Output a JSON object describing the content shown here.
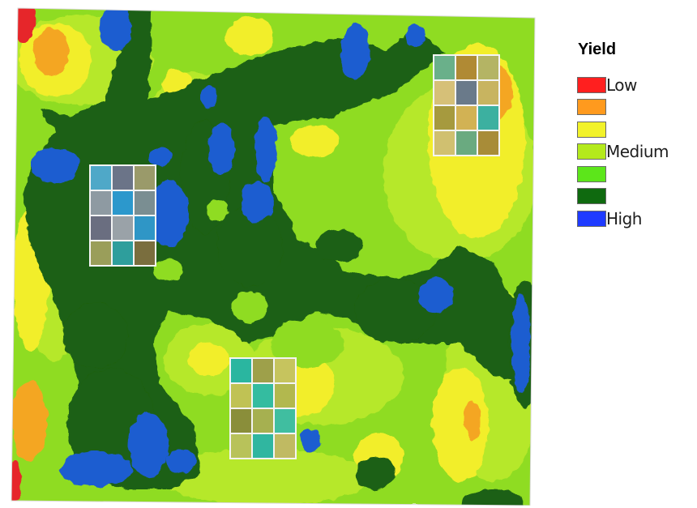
{
  "legend": {
    "title": "Yield",
    "items": [
      {
        "color": "#ff1f1f",
        "label": "Low"
      },
      {
        "color": "#ff9a1e",
        "label": ""
      },
      {
        "color": "#f2f22a",
        "label": ""
      },
      {
        "color": "#b4ea1c",
        "label": "Medium"
      },
      {
        "color": "#5ce61a",
        "label": ""
      },
      {
        "color": "#0f6a0f",
        "label": ""
      },
      {
        "color": "#1f3bff",
        "label": "High"
      }
    ]
  },
  "map_colors": {
    "background": "#8fdc22",
    "light_green": "#b6e82a",
    "yellow": "#f2ee2c",
    "orange": "#f4a623",
    "red": "#e6282a",
    "dark_green": "#1d6012",
    "blue": "#1e5dd0",
    "plot_outline": "#f4f4f4"
  },
  "plot_grids": [
    {
      "cols": 3,
      "rows": 4,
      "cells": [
        "#4fa8c8",
        "#6b7488",
        "#9a9a6a",
        "#8e9aa2",
        "#2c98cc",
        "#7a8e92",
        "#6a6e80",
        "#9aa2a8",
        "#2f96c6",
        "#9a9e5a",
        "#2e9e9c",
        "#7a6e3e"
      ]
    },
    {
      "cols": 3,
      "rows": 4,
      "cells": [
        "#6ab08a",
        "#b08a34",
        "#b4b464",
        "#d6c078",
        "#6a7a8a",
        "#c8b460",
        "#a69a3e",
        "#d2b254",
        "#3cb0a0",
        "#d0c070",
        "#6aaa80",
        "#a88c38"
      ]
    },
    {
      "cols": 3,
      "rows": 4,
      "cells": [
        "#2ab6a0",
        "#9ea04a",
        "#c6c45e",
        "#c0c254",
        "#34bca0",
        "#b2b84e",
        "#8a8e3a",
        "#a6b050",
        "#40bea0",
        "#b8c25a",
        "#30b6a0",
        "#c0ba62"
      ]
    }
  ]
}
